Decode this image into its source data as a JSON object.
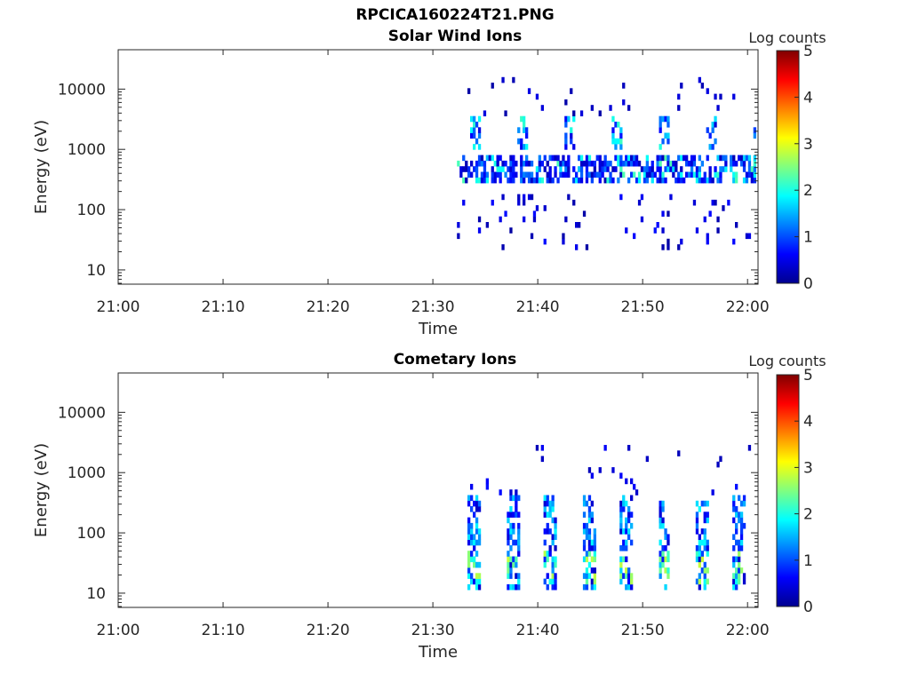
{
  "figure": {
    "title": "RPCICA160224T21.PNG"
  },
  "panels": [
    {
      "title": "Solar Wind Ions",
      "colorbar_label": "Log counts"
    },
    {
      "title": "Cometary Ions",
      "colorbar_label": "Log counts"
    }
  ],
  "colormap": [
    "#00008f",
    "#0000ff",
    "#0080ff",
    "#00ffff",
    "#80ff80",
    "#ffff00",
    "#ff8000",
    "#ff0000",
    "#800000"
  ],
  "chart_data": [
    {
      "type": "heatmap",
      "title": "Solar Wind Ions",
      "xlabel": "Time",
      "ylabel": "Energy (eV)",
      "x_ticks": [
        "21:00",
        "21:10",
        "21:20",
        "21:30",
        "21:40",
        "21:50",
        "22:00"
      ],
      "x_range_minutes": [
        0,
        61
      ],
      "y_scale": "log",
      "y_ticks": [
        "10",
        "100",
        "1000",
        "10000"
      ],
      "y_range": [
        5.8,
        45000
      ],
      "colorbar": {
        "label": "Log counts",
        "range": [
          0,
          5
        ],
        "ticks": [
          "0",
          "1",
          "2",
          "3",
          "4",
          "5"
        ]
      },
      "data_start_minute": 32.3,
      "data_end_minute": 60.8,
      "features": [
        {
          "t_start": 32.5,
          "t_end": 60.5,
          "e_low": 280,
          "e_high": 800,
          "peak_log_counts": 2.3,
          "description": "main solar wind band"
        },
        {
          "t_start": 33.5,
          "t_end": 38.5,
          "e_low": 1000,
          "e_high": 3000,
          "peak_log_counts": 2.2,
          "description": "high energy bursts"
        }
      ]
    },
    {
      "type": "heatmap",
      "title": "Cometary Ions",
      "xlabel": "Time",
      "ylabel": "Energy (eV)",
      "x_ticks": [
        "21:00",
        "21:10",
        "21:20",
        "21:30",
        "21:40",
        "21:50",
        "22:00"
      ],
      "x_range_minutes": [
        0,
        61
      ],
      "y_scale": "log",
      "y_ticks": [
        "10",
        "100",
        "1000",
        "10000"
      ],
      "y_range": [
        5.8,
        45000
      ],
      "colorbar": {
        "label": "Log counts",
        "range": [
          0,
          5
        ],
        "ticks": [
          "0",
          "1",
          "2",
          "3",
          "4",
          "5"
        ]
      },
      "data_start_minute": 32.3,
      "data_end_minute": 60.8,
      "features": [
        {
          "t_start": 33.0,
          "t_end": 60.5,
          "e_low": 12,
          "e_high": 400,
          "peak_log_counts": 3.0,
          "description": "periodic cometary ion bursts (~3.5 min period)"
        }
      ]
    }
  ]
}
